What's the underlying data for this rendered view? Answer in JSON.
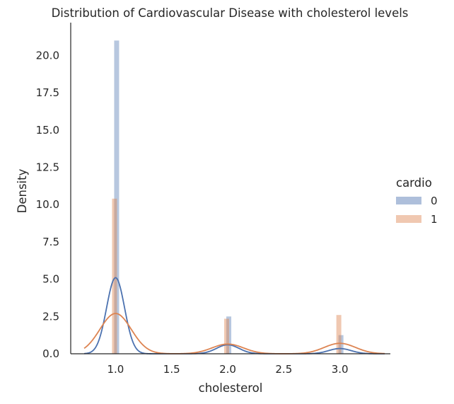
{
  "chart_data": {
    "type": "bar",
    "title": "Distribution of Cardiovascular Disease with cholesterol levels",
    "xlabel": "cholesterol",
    "ylabel": "Density",
    "xlim": [
      0.6,
      3.45
    ],
    "ylim": [
      0,
      22.2
    ],
    "xticks": [
      "1.0",
      "1.5",
      "2.0",
      "2.5",
      "3.0"
    ],
    "yticks": [
      "0.0",
      "2.5",
      "5.0",
      "7.5",
      "10.0",
      "12.5",
      "15.0",
      "17.5",
      "20.0"
    ],
    "grid": false,
    "legend": {
      "title": "cardio",
      "position": "right"
    },
    "series": [
      {
        "name": "0",
        "color": "#4c72b0",
        "bars": [
          {
            "x": 1.0,
            "value": 21.0
          },
          {
            "x": 2.0,
            "value": 2.5
          },
          {
            "x": 3.0,
            "value": 1.25
          }
        ],
        "kde": [
          {
            "center": 1.0,
            "sigma": 0.08,
            "peak": 5.1
          },
          {
            "center": 2.0,
            "sigma": 0.1,
            "peak": 0.6
          },
          {
            "center": 3.0,
            "sigma": 0.1,
            "peak": 0.35
          }
        ]
      },
      {
        "name": "1",
        "color": "#dd8452",
        "bars": [
          {
            "x": 1.0,
            "value": 10.4
          },
          {
            "x": 2.0,
            "value": 2.35
          },
          {
            "x": 3.0,
            "value": 2.6
          }
        ],
        "kde": [
          {
            "center": 1.0,
            "sigma": 0.14,
            "peak": 2.7
          },
          {
            "center": 2.0,
            "sigma": 0.14,
            "peak": 0.65
          },
          {
            "center": 3.0,
            "sigma": 0.14,
            "peak": 0.7
          }
        ]
      }
    ]
  }
}
